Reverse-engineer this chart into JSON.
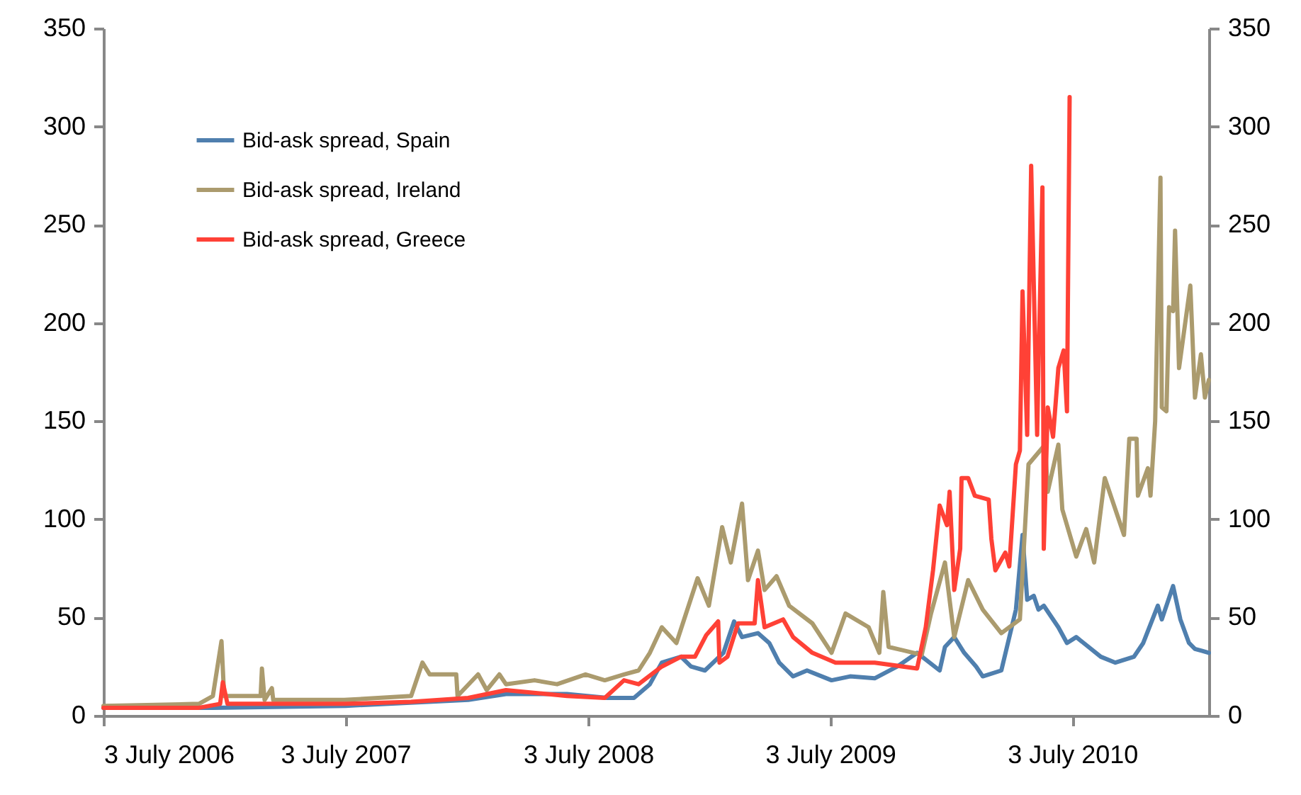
{
  "chart_data": {
    "type": "line",
    "xlim": [
      "2006-07-03",
      "2011-01-25"
    ],
    "xticks": [
      {
        "value": "2006-07-03",
        "label": "3 July 2006"
      },
      {
        "value": "2007-07-03",
        "label": "3 July 2007"
      },
      {
        "value": "2008-07-03",
        "label": "3 July 2008"
      },
      {
        "value": "2009-07-03",
        "label": "3 July 2009"
      },
      {
        "value": "2010-07-03",
        "label": "3 July 2010"
      }
    ],
    "ylim": [
      0,
      350
    ],
    "yticks": [
      0,
      50,
      100,
      150,
      200,
      250,
      300,
      350
    ],
    "y2lim": [
      0,
      350
    ],
    "y2ticks": [
      0,
      50,
      100,
      150,
      200,
      250,
      300,
      350
    ],
    "grid": false,
    "legend": "top left",
    "line_style": "solid",
    "series": [
      {
        "name": "Bid-ask spread, Spain",
        "color": "#4f7fae",
        "x": [
          "2006-07-03",
          "2006-12-15",
          "2007-07-03",
          "2008-01-04",
          "2008-03-01",
          "2008-06-01",
          "2008-08-01",
          "2008-09-10",
          "2008-10-04",
          "2008-10-22",
          "2008-11-20",
          "2008-12-05",
          "2008-12-26",
          "2009-01-23",
          "2009-02-08",
          "2009-02-20",
          "2009-03-16",
          "2009-04-02",
          "2009-04-17",
          "2009-05-08",
          "2009-05-29",
          "2009-07-05",
          "2009-08-02",
          "2009-09-08",
          "2009-10-12",
          "2009-11-11",
          "2009-12-15",
          "2009-12-23",
          "2010-01-06",
          "2010-01-21",
          "2010-02-08",
          "2010-02-18",
          "2010-03-18",
          "2010-04-09",
          "2010-04-19",
          "2010-04-26",
          "2010-05-06",
          "2010-05-13",
          "2010-05-21",
          "2010-06-12",
          "2010-06-25",
          "2010-07-09",
          "2010-08-15",
          "2010-09-06",
          "2010-10-04",
          "2010-10-18",
          "2010-11-09",
          "2010-11-15",
          "2010-12-02",
          "2010-12-13",
          "2010-12-26",
          "2011-01-04",
          "2011-01-15",
          "2011-01-25"
        ],
        "values": [
          4,
          4,
          5,
          8,
          11,
          11,
          9,
          9,
          16,
          27,
          30,
          25,
          23,
          32,
          48,
          40,
          42,
          37,
          27,
          20,
          23,
          18,
          20,
          19,
          25,
          32,
          23,
          35,
          40,
          32,
          25,
          20,
          23,
          54,
          92,
          59,
          61,
          54,
          56,
          45,
          37,
          40,
          30,
          27,
          30,
          37,
          56,
          49,
          66,
          49,
          37,
          34,
          33,
          32
        ]
      },
      {
        "name": "Bid-ask spread, Ireland",
        "color": "#ab9b6e",
        "x": [
          "2006-07-03",
          "2006-11-24",
          "2006-12-15",
          "2006-12-28",
          "2007-01-01",
          "2007-02-25",
          "2007-02-27",
          "2007-03-03",
          "2007-03-14",
          "2007-03-16",
          "2007-07-01",
          "2007-10-10",
          "2007-10-27",
          "2007-11-07",
          "2007-12-17",
          "2007-12-19",
          "2008-01-19",
          "2008-02-01",
          "2008-02-20",
          "2008-03-01",
          "2008-04-13",
          "2008-05-17",
          "2008-06-29",
          "2008-07-28",
          "2008-08-26",
          "2008-09-17",
          "2008-10-04",
          "2008-10-22",
          "2008-11-13",
          "2008-12-15",
          "2009-01-01",
          "2009-01-21",
          "2009-02-03",
          "2009-02-20",
          "2009-03-01",
          "2009-03-16",
          "2009-03-26",
          "2009-04-13",
          "2009-05-02",
          "2009-06-06",
          "2009-07-05",
          "2009-07-26",
          "2009-08-30",
          "2009-09-15",
          "2009-09-21",
          "2009-09-29",
          "2009-11-18",
          "2009-12-02",
          "2009-12-23",
          "2010-01-06",
          "2010-01-27",
          "2010-02-18",
          "2010-03-18",
          "2010-04-15",
          "2010-04-28",
          "2010-05-23",
          "2010-05-27",
          "2010-06-12",
          "2010-06-18",
          "2010-07-09",
          "2010-07-24",
          "2010-08-05",
          "2010-08-21",
          "2010-09-06",
          "2010-09-19",
          "2010-09-27",
          "2010-10-08",
          "2010-10-10",
          "2010-10-25",
          "2010-10-29",
          "2010-11-05",
          "2010-11-13",
          "2010-11-15",
          "2010-11-22",
          "2010-11-26",
          "2010-12-02",
          "2010-12-05",
          "2010-12-11",
          "2010-12-28",
          "2011-01-04",
          "2011-01-13",
          "2011-01-19",
          "2011-01-25"
        ],
        "values": [
          5,
          6,
          10,
          38,
          10,
          10,
          24,
          8,
          14,
          8,
          8,
          10,
          27,
          21,
          21,
          10,
          21,
          13,
          21,
          16,
          18,
          16,
          21,
          18,
          21,
          23,
          32,
          45,
          37,
          70,
          56,
          96,
          78,
          108,
          69,
          84,
          64,
          71,
          56,
          47,
          32,
          52,
          45,
          32,
          63,
          35,
          31,
          52,
          78,
          40,
          69,
          54,
          42,
          49,
          128,
          138,
          114,
          138,
          105,
          81,
          95,
          78,
          121,
          105,
          92,
          141,
          141,
          112,
          126,
          112,
          150,
          274,
          157,
          155,
          208,
          206,
          247,
          177,
          219,
          162,
          184,
          162,
          171
        ]
      },
      {
        "name": "Bid-ask spread, Greece",
        "color": "#ff4136",
        "x": [
          "2006-07-03",
          "2006-11-24",
          "2006-12-26",
          "2006-12-30",
          "2007-01-06",
          "2007-07-01",
          "2007-10-10",
          "2008-01-04",
          "2008-03-01",
          "2008-06-01",
          "2008-07-28",
          "2008-08-26",
          "2008-09-17",
          "2008-10-22",
          "2008-11-20",
          "2008-12-11",
          "2008-12-28",
          "2009-01-15",
          "2009-01-17",
          "2009-01-29",
          "2009-02-14",
          "2009-03-11",
          "2009-03-16",
          "2009-03-26",
          "2009-04-23",
          "2009-05-08",
          "2009-06-06",
          "2009-07-11",
          "2009-09-08",
          "2009-11-11",
          "2009-11-24",
          "2009-12-05",
          "2009-12-15",
          "2009-12-26",
          "2009-12-30",
          "2010-01-06",
          "2010-01-15",
          "2010-01-17",
          "2010-01-27",
          "2010-02-06",
          "2010-02-27",
          "2010-03-03",
          "2010-03-09",
          "2010-03-24",
          "2010-03-30",
          "2010-04-09",
          "2010-04-15",
          "2010-04-19",
          "2010-04-26",
          "2010-05-02",
          "2010-05-11",
          "2010-05-13",
          "2010-05-19",
          "2010-05-21",
          "2010-05-27",
          "2010-06-04",
          "2010-06-12",
          "2010-06-20",
          "2010-06-25",
          "2010-06-29"
        ],
        "values": [
          4,
          4,
          6,
          17,
          6,
          6,
          7,
          9,
          13,
          10,
          9,
          18,
          16,
          25,
          30,
          30,
          41,
          48,
          27,
          30,
          47,
          47,
          69,
          45,
          49,
          40,
          32,
          27,
          27,
          24,
          45,
          74,
          107,
          97,
          114,
          64,
          85,
          121,
          121,
          112,
          110,
          90,
          74,
          83,
          76,
          128,
          135,
          216,
          143,
          280,
          143,
          177,
          269,
          85,
          157,
          142,
          177,
          186,
          155,
          315
        ]
      }
    ]
  }
}
